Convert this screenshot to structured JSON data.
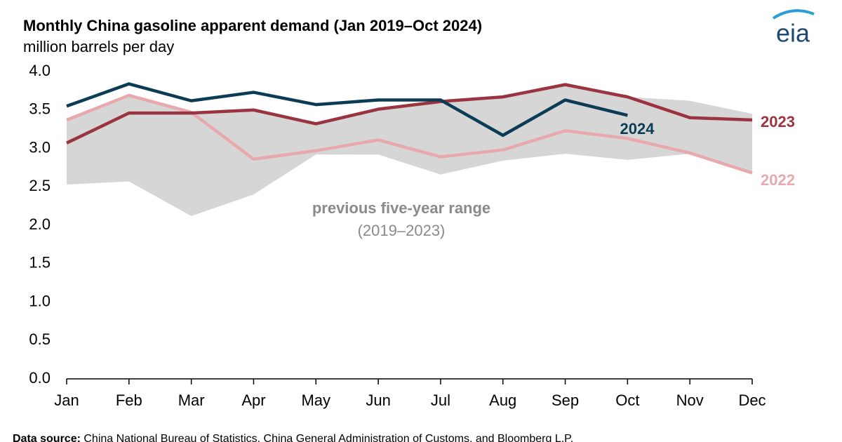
{
  "chart_data": {
    "type": "line",
    "title": "Monthly China gasoline apparent demand (Jan 2019–Oct 2024)",
    "subtitle": "million barrels per day",
    "logo": "eia",
    "categories": [
      "Jan",
      "Feb",
      "Mar",
      "Apr",
      "May",
      "Jun",
      "Jul",
      "Aug",
      "Sep",
      "Oct",
      "Nov",
      "Dec"
    ],
    "ylim": [
      0,
      4
    ],
    "yticks": [
      {
        "value": 0,
        "label": "0.0"
      },
      0.5,
      {
        "value": 1,
        "label": "1.0"
      },
      1.5,
      {
        "value": 2,
        "label": "2.0"
      },
      2.5,
      {
        "value": 3,
        "label": "3.0"
      },
      3.5,
      {
        "value": 4,
        "label": "4.0"
      }
    ],
    "grid": false,
    "range": {
      "name": "previous five-year range",
      "sublabel": "(2019–2023)",
      "color": "#d6d6d6",
      "high": [
        3.37,
        3.69,
        3.47,
        3.5,
        3.32,
        3.51,
        3.61,
        3.67,
        3.83,
        3.67,
        3.62,
        3.45
      ],
      "low": [
        2.53,
        2.57,
        2.12,
        2.4,
        2.92,
        2.92,
        2.66,
        2.84,
        2.93,
        2.85,
        2.93,
        2.68
      ]
    },
    "series": [
      {
        "name": "2022",
        "color": "#e8a9ae",
        "values": [
          3.37,
          3.69,
          3.47,
          2.86,
          2.97,
          3.11,
          2.89,
          2.98,
          3.23,
          3.13,
          2.94,
          2.68
        ]
      },
      {
        "name": "2023",
        "color": "#9b3441",
        "values": [
          3.07,
          3.46,
          3.46,
          3.5,
          3.32,
          3.51,
          3.61,
          3.67,
          3.83,
          3.67,
          3.4,
          3.37
        ]
      },
      {
        "name": "2024",
        "color": "#0b3c55",
        "values": [
          3.55,
          3.84,
          3.62,
          3.73,
          3.57,
          3.63,
          3.63,
          3.17,
          3.63,
          3.43,
          null,
          null
        ]
      }
    ],
    "source": {
      "label": "Data source:",
      "text": "China National Bureau of Statistics, China General Administration of Customs, and Bloomberg L.P."
    }
  }
}
